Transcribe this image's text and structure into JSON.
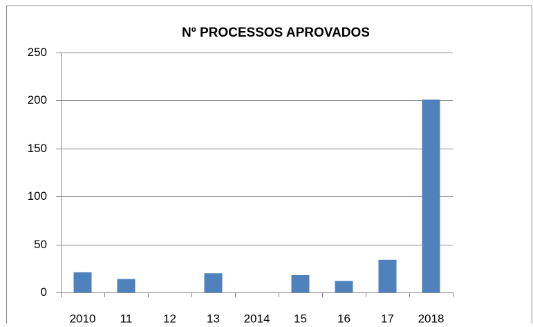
{
  "chart_data": {
    "type": "bar",
    "title": "Nº PROCESSOS APROVADOS",
    "categories": [
      "2010",
      "11",
      "12",
      "13",
      "2014",
      "15",
      "16",
      "17",
      "2018"
    ],
    "values": [
      21,
      14,
      0,
      20,
      0,
      18,
      12,
      34,
      201
    ],
    "color": "#4f81bd",
    "ylim": [
      0,
      250
    ],
    "yticks": [
      0,
      50,
      100,
      150,
      200,
      250
    ],
    "grid": true
  }
}
